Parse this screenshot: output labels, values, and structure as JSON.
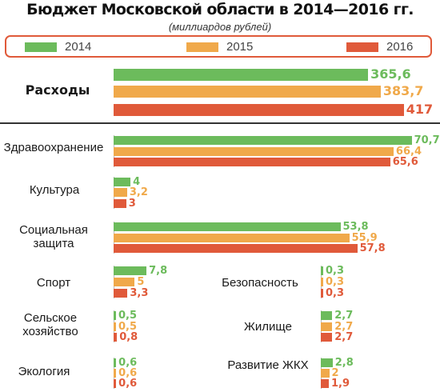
{
  "title": "Бюджет Московской области в 2014—2016 гг.",
  "subtitle": "(миллиардов рублей)",
  "colors": {
    "2014": "#6cbb5c",
    "2015": "#f0a94a",
    "2016": "#e05a3a",
    "frame": "#e05a3a"
  },
  "chart_data": {
    "type": "bar",
    "orientation": "horizontal",
    "title": "Бюджет Московской области в 2014—2016 гг.",
    "subtitle": "(миллиардов рублей)",
    "legend": [
      "2014",
      "2015",
      "2016"
    ],
    "legend_position": "top",
    "series": [
      {
        "name": "2014",
        "color": "#6cbb5c"
      },
      {
        "name": "2015",
        "color": "#f0a94a"
      },
      {
        "name": "2016",
        "color": "#e05a3a"
      }
    ],
    "groups": [
      {
        "label": "Расходы",
        "values": [
          365.6,
          383.7,
          417
        ],
        "labels": [
          "365,6",
          "383,7",
          "417"
        ]
      },
      {
        "label": "Здравоохранение",
        "values": [
          70.7,
          66.4,
          65.6
        ],
        "labels": [
          "70,7",
          "66,4",
          "65,6"
        ]
      },
      {
        "label": "Культура",
        "values": [
          4,
          3.2,
          3
        ],
        "labels": [
          "4",
          "3,2",
          "3"
        ]
      },
      {
        "label": "Социальная защита",
        "values": [
          53.8,
          55.9,
          57.8
        ],
        "labels": [
          "53,8",
          "55,9",
          "57,8"
        ]
      },
      {
        "label": "Спорт",
        "values": [
          7.8,
          5,
          3.3
        ],
        "labels": [
          "7,8",
          "5",
          "3,3"
        ]
      },
      {
        "label": "Сельское хозяйство",
        "values": [
          0.5,
          0.5,
          0.8
        ],
        "labels": [
          "0,5",
          "0,5",
          "0,8"
        ]
      },
      {
        "label": "Экология",
        "values": [
          0.6,
          0.6,
          0.6
        ],
        "labels": [
          "0,6",
          "0,6",
          "0,6"
        ]
      },
      {
        "label": "Безопасность",
        "values": [
          0.3,
          0.3,
          0.3
        ],
        "labels": [
          "0,3",
          "0,3",
          "0,3"
        ]
      },
      {
        "label": "Жилище",
        "values": [
          2.7,
          2.7,
          2.7
        ],
        "labels": [
          "2,7",
          "2,7",
          "2,7"
        ]
      },
      {
        "label": "Развитие ЖКХ",
        "values": [
          2.8,
          2,
          1.9
        ],
        "labels": [
          "2,8",
          "2",
          "1,9"
        ]
      }
    ]
  }
}
